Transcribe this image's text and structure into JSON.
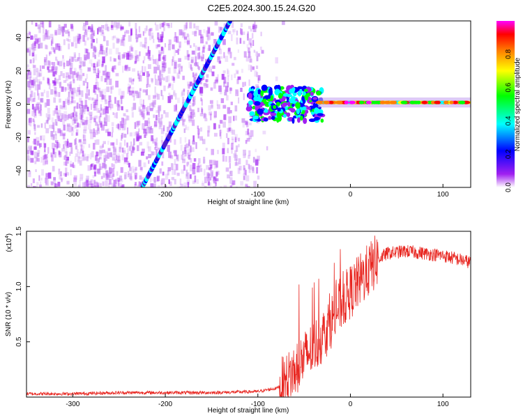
{
  "title": "C2E5.2024.300.15.24.G20",
  "chart_data": [
    {
      "type": "heatmap",
      "xlabel": "Height of straight line (km)",
      "ylabel": "Frequency (Hz)",
      "xlim": [
        -350,
        130
      ],
      "ylim": [
        -50,
        50
      ],
      "xticks": [
        -300,
        -200,
        -100,
        0,
        100
      ],
      "yticks": [
        -40,
        -20,
        0,
        20,
        40
      ],
      "colorbar": {
        "label": "Normalized spectral amplitude",
        "range": [
          0,
          1
        ],
        "ticks": [
          "0.0",
          "0.2",
          "0.4",
          "0.6",
          "0.8"
        ],
        "colors": [
          "#ffffff",
          "#a020f0",
          "#0000ff",
          "#00ffff",
          "#00ff00",
          "#ffff00",
          "#ff8000",
          "#ff0000",
          "#ff00ff"
        ]
      },
      "features": {
        "diagonal_track": {
          "x": [
            -225,
            -130
          ],
          "y": [
            -50,
            50
          ]
        },
        "carrier_track": {
          "x": [
            -35,
            130
          ],
          "y": [
            1,
            1
          ]
        }
      }
    },
    {
      "type": "line",
      "xlabel": "Height of straight line (km)",
      "ylabel": "SNR (10 * v/v)",
      "scale_label": "(x10",
      "scale_exp": "4",
      "xlim": [
        -350,
        130
      ],
      "ylim": [
        0,
        1.5
      ],
      "xticks": [
        -300,
        -200,
        -100,
        0,
        100
      ],
      "yticks": [
        "0.5",
        "1.0",
        "1.5"
      ],
      "series": [
        {
          "color": "#e8251f",
          "x": [
            -350,
            -300,
            -250,
            -200,
            -150,
            -100,
            -80,
            -70,
            -60,
            -50,
            -40,
            -30,
            -20,
            -10,
            0,
            10,
            20,
            30,
            40,
            60,
            80,
            100,
            130
          ],
          "y": [
            0.03,
            0.03,
            0.04,
            0.04,
            0.04,
            0.05,
            0.08,
            0.14,
            0.25,
            0.35,
            0.45,
            0.55,
            0.7,
            0.85,
            0.95,
            1.05,
            1.15,
            1.25,
            1.3,
            1.32,
            1.3,
            1.28,
            1.22
          ]
        }
      ]
    }
  ]
}
